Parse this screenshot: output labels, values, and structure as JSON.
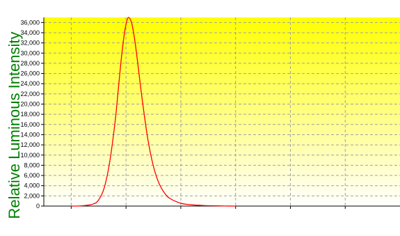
{
  "chart_data": {
    "type": "line",
    "title": "",
    "xlabel": "",
    "ylabel": "Relative Luminous Intensity",
    "xlim": [
      375,
      700
    ],
    "ylim": [
      0,
      37000
    ],
    "yticks": [
      0,
      2000,
      4000,
      6000,
      8000,
      10000,
      12000,
      14000,
      16000,
      18000,
      20000,
      22000,
      24000,
      26000,
      28000,
      30000,
      32000,
      34000,
      36000
    ],
    "ytick_labels": [
      "0",
      "2,000",
      "4,000",
      "6,000",
      "8,000",
      "10,000",
      "12,000",
      "14,000",
      "16,000",
      "18,000",
      "20,000",
      "22,000",
      "24,000",
      "26,000",
      "28,000",
      "30,000",
      "32,000",
      "34,000",
      "36,000"
    ],
    "xgrid": [
      400,
      450,
      500,
      550,
      600,
      650
    ],
    "grid": true,
    "series": [
      {
        "x": [
          400,
          410,
          420,
          425,
          430,
          435,
          440,
          443,
          446,
          449,
          452,
          455,
          458,
          461,
          465,
          470,
          475,
          480,
          485,
          490,
          500,
          510,
          520,
          530,
          540,
          550
        ],
        "y": [
          0,
          50,
          400,
          1200,
          3500,
          8500,
          16500,
          23000,
          29500,
          34500,
          37000,
          36000,
          32500,
          27500,
          20500,
          13000,
          7800,
          4500,
          2600,
          1500,
          550,
          250,
          120,
          60,
          20,
          0
        ],
        "color": "#ff0000"
      }
    ],
    "background_gradient": [
      "#ffff00",
      "#ffffff"
    ],
    "grid_color": "#a0a0a0",
    "axis_label_color": "#008000"
  }
}
